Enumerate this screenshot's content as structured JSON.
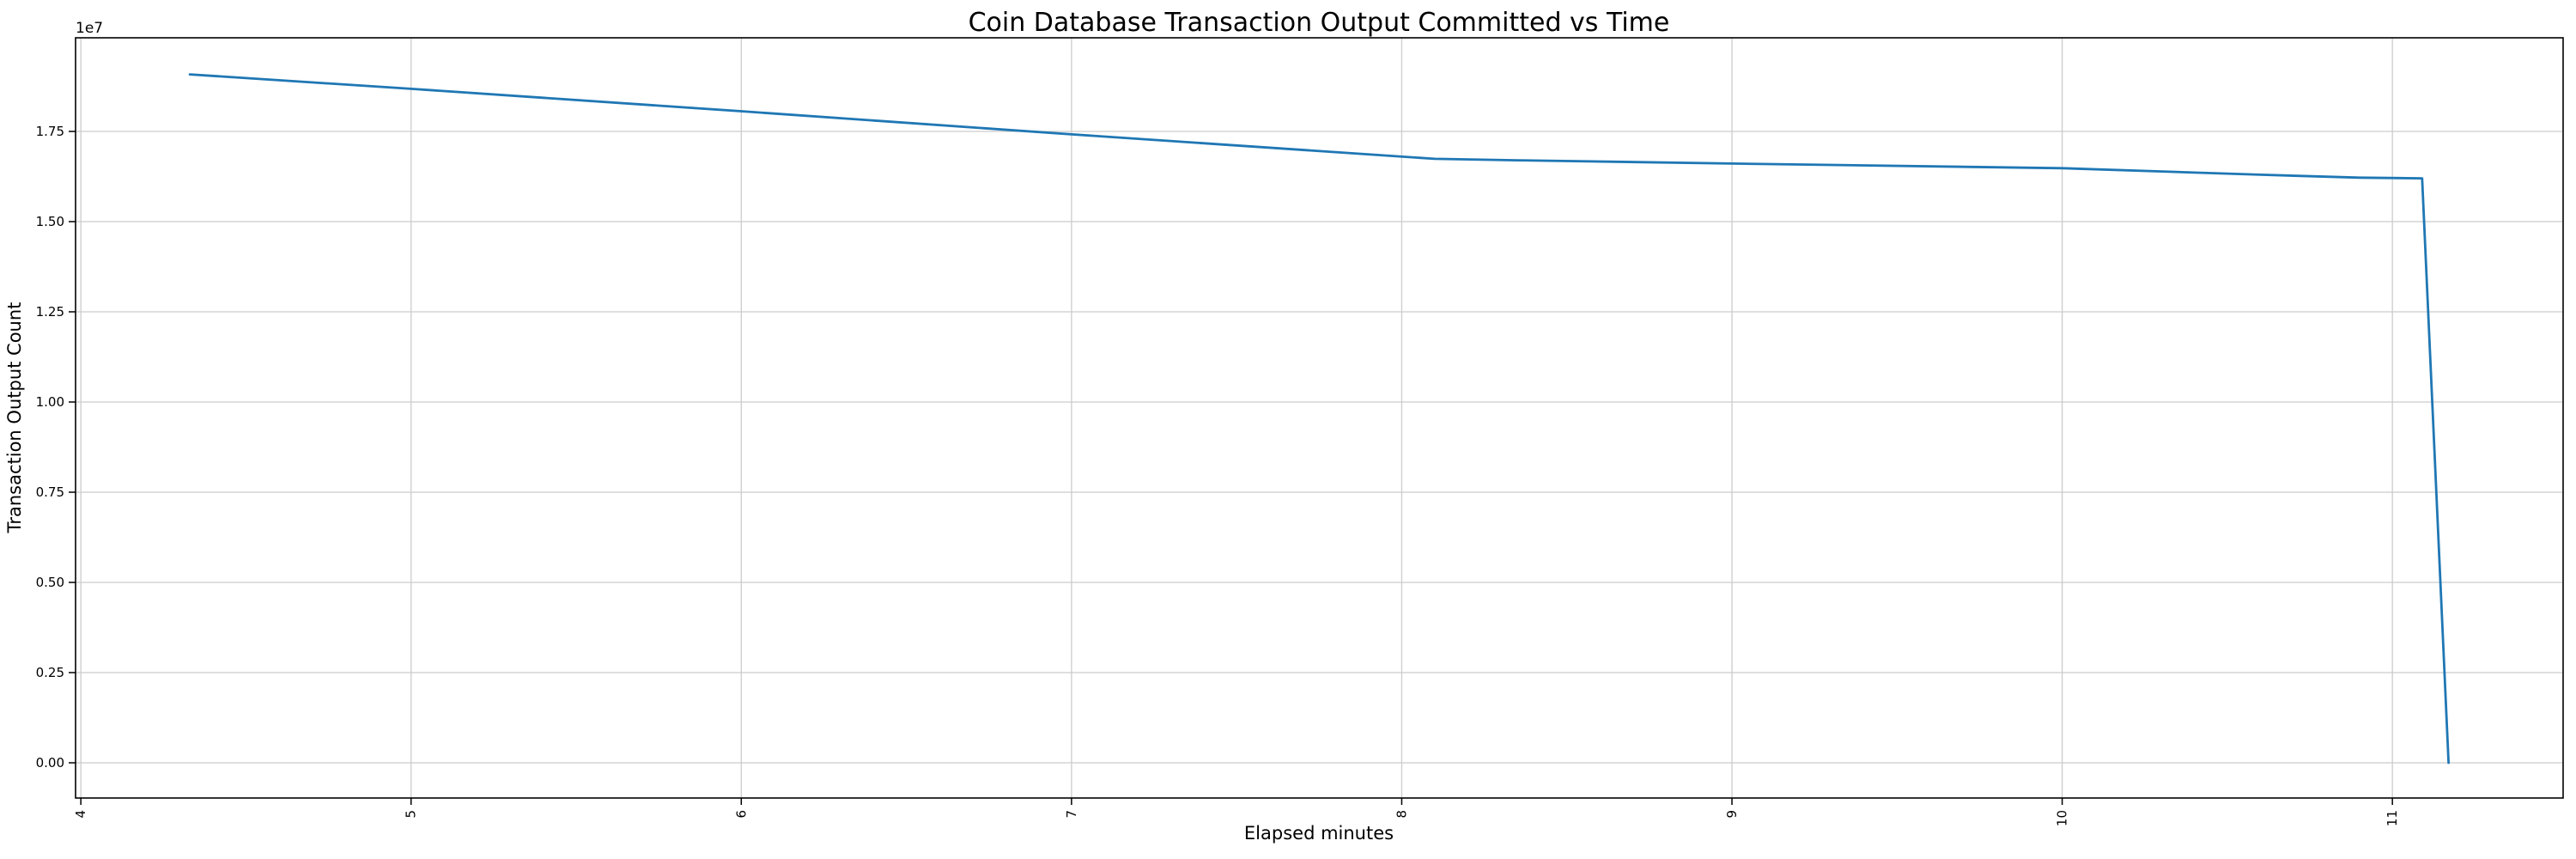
{
  "figure": {
    "background": "#ffffff"
  },
  "chart_data": {
    "type": "line",
    "title": "Coin Database Transaction Output Committed vs Time",
    "xlabel": "Elapsed minutes",
    "ylabel": "Transaction Output Count",
    "y_offset_text": "1e7",
    "grid": true,
    "legend": "none",
    "xlim": [
      3.984,
      11.517
    ],
    "ylim": [
      -976000,
      20095000
    ],
    "x_ticks": {
      "values": [
        4,
        5,
        6,
        7,
        8,
        9,
        10,
        11
      ],
      "labels": [
        "4",
        "5",
        "6",
        "7",
        "8",
        "9",
        "10",
        "11"
      ],
      "rotation_deg": 90
    },
    "y_ticks": {
      "values": [
        0,
        2500000,
        5000000,
        7500000,
        10000000,
        12500000,
        15000000,
        17500000
      ],
      "labels": [
        "0.00",
        "0.25",
        "0.50",
        "0.75",
        "1.00",
        "1.25",
        "1.50",
        "1.75"
      ]
    },
    "series": [
      {
        "name": "transaction-output-count",
        "color": "#1f77b4",
        "points": [
          [
            4.33,
            19080000
          ],
          [
            5.0,
            18680000
          ],
          [
            6.0,
            18060000
          ],
          [
            7.0,
            17420000
          ],
          [
            8.1,
            16740000
          ],
          [
            8.35,
            16700000
          ],
          [
            9.0,
            16610000
          ],
          [
            10.0,
            16480000
          ],
          [
            10.6,
            16300000
          ],
          [
            10.9,
            16220000
          ],
          [
            11.09,
            16200000
          ],
          [
            11.17,
            0
          ]
        ]
      }
    ],
    "colors": {
      "line": "#1f77b4",
      "grid": "#cccccc",
      "spine": "#000000",
      "tick": "#000000",
      "background": "#ffffff"
    }
  }
}
